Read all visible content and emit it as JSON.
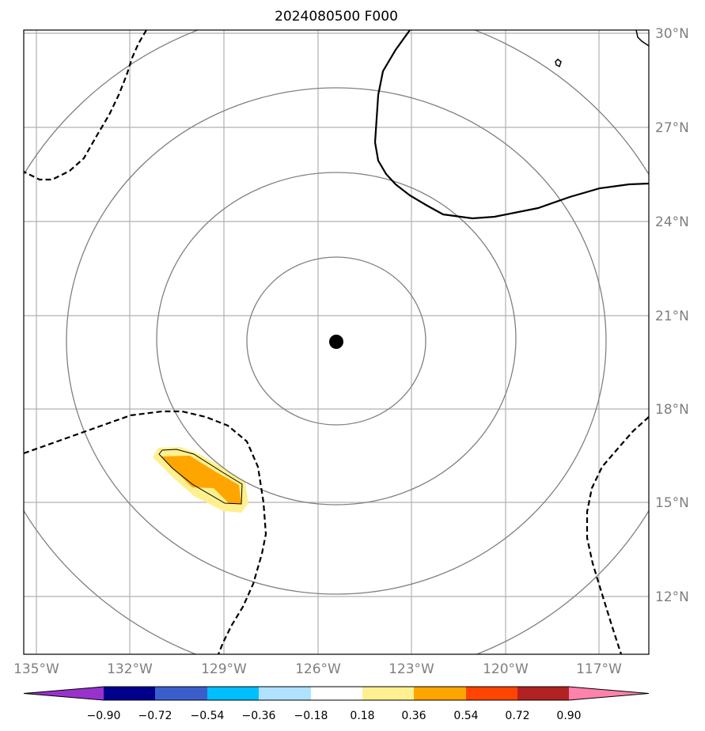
{
  "title": "2024080500 F000",
  "map": {
    "lon_ticks": [
      "135°W",
      "132°W",
      "129°W",
      "126°W",
      "123°W",
      "120°W",
      "117°W"
    ],
    "lat_ticks": [
      "30°N",
      "27°N",
      "24°N",
      "21°N",
      "18°N",
      "15°N",
      "12°N"
    ],
    "grid": true,
    "center_marker": {
      "lon": -125.5,
      "lat": 20.2
    },
    "range_rings": 4,
    "colors": {
      "grid": "#b0b0b0",
      "rings": "#808080",
      "contours": "#000000",
      "center_marker": "#000000",
      "tick_labels": "#7f7f7f"
    }
  },
  "colorbar": {
    "ticks": [
      "−0.90",
      "−0.72",
      "−0.54",
      "−0.36",
      "−0.18",
      "0.18",
      "0.36",
      "0.54",
      "0.72",
      "0.90"
    ],
    "bins": [
      {
        "color": "#9932cc"
      },
      {
        "color": "#00008b"
      },
      {
        "color": "#3a5fcd"
      },
      {
        "color": "#00bfff"
      },
      {
        "color": "#b0e2ff"
      },
      {
        "color": "#ffffff"
      },
      {
        "color": "#fff08f"
      },
      {
        "color": "#ffa500"
      },
      {
        "color": "#ff4500"
      },
      {
        "color": "#b22222"
      },
      {
        "color": "#ff82ab"
      }
    ]
  }
}
